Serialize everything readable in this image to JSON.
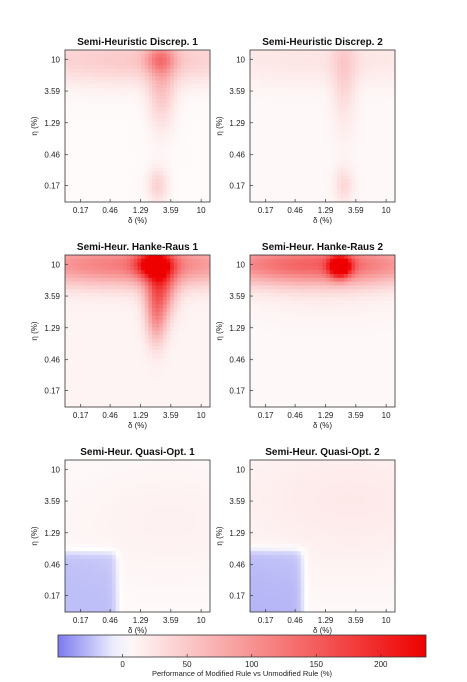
{
  "chart_data": {
    "type": "heatmap",
    "axis_ticks": [
      "0.17",
      "0.46",
      "1.29",
      "3.59",
      "10"
    ],
    "colormap": {
      "negative": "#7b7bf0",
      "zero": "#ffffff",
      "positive": "#ee0000"
    },
    "colorbar": {
      "label": "Performance of Modified Rule vs Unmodified Rule (%)",
      "range": [
        -50,
        235
      ],
      "ticks": [
        0,
        50,
        100,
        150,
        200
      ]
    },
    "panels": [
      {
        "title": "Semi-Heuristic Discrep. 1",
        "xlabel": "δ (%)",
        "ylabel": "η (%)",
        "base": 4,
        "blobs": [
          {
            "x": 1.29,
            "y": 10,
            "sx": 2.2,
            "sy": 0.35,
            "v": 45
          },
          {
            "x": 2.5,
            "y": 10,
            "sx": 0.22,
            "sy": 0.18,
            "v": 55
          },
          {
            "x": 2.6,
            "y": 4.5,
            "sx": 0.2,
            "sy": 0.6,
            "v": 50
          },
          {
            "x": 2.3,
            "y": 0.17,
            "sx": 0.15,
            "sy": 0.25,
            "v": 38
          }
        ]
      },
      {
        "title": "Semi-Heuristic Discrep. 2",
        "xlabel": "δ (%)",
        "ylabel": "η (%)",
        "base": 6,
        "blobs": [
          {
            "x": 1.29,
            "y": 10,
            "sx": 2.2,
            "sy": 0.35,
            "v": 18
          },
          {
            "x": 2.4,
            "y": 6,
            "sx": 0.18,
            "sy": 0.75,
            "v": 30
          },
          {
            "x": 2.4,
            "y": 0.17,
            "sx": 0.14,
            "sy": 0.25,
            "v": 30
          }
        ]
      },
      {
        "title": "Semi-Heur. Hanke-Raus 1",
        "xlabel": "δ (%)",
        "ylabel": "η (%)",
        "base": 10,
        "blobs": [
          {
            "x": 1.0,
            "y": 10,
            "sx": 2.0,
            "sy": 0.3,
            "v": 110
          },
          {
            "x": 2.0,
            "y": 10,
            "sx": 0.25,
            "sy": 0.18,
            "v": 150
          },
          {
            "x": 2.5,
            "y": 5,
            "sx": 0.22,
            "sy": 0.4,
            "v": 120
          },
          {
            "x": 2.2,
            "y": 1.8,
            "sx": 0.15,
            "sy": 0.4,
            "v": 75
          }
        ]
      },
      {
        "title": "Semi-Heur. Hanke-Raus 2",
        "xlabel": "δ (%)",
        "ylabel": "η (%)",
        "base": 6,
        "blobs": [
          {
            "x": 0.9,
            "y": 10,
            "sx": 1.8,
            "sy": 0.28,
            "v": 130
          },
          {
            "x": 2.1,
            "y": 9.3,
            "sx": 0.16,
            "sy": 0.15,
            "v": 210
          },
          {
            "x": 1.3,
            "y": 6,
            "sx": 1.2,
            "sy": 0.5,
            "v": 12
          }
        ]
      },
      {
        "title": "Semi-Heur. Quasi-Opt. 1",
        "xlabel": "δ (%)",
        "ylabel": "η (%)",
        "base": 5,
        "blobs": [
          {
            "x": 3.5,
            "y": 1.8,
            "sx": 1.5,
            "sy": 0.8,
            "v": 8
          }
        ],
        "negative_region": {
          "x_max": 0.58,
          "y_max": 0.7,
          "value": -25
        }
      },
      {
        "title": "Semi-Heur. Quasi-Opt. 2",
        "xlabel": "δ (%)",
        "ylabel": "η (%)",
        "base": 6,
        "blobs": [
          {
            "x": 3.0,
            "y": 3.8,
            "sx": 1.8,
            "sy": 0.9,
            "v": 14
          }
        ],
        "negative_region": {
          "x_max": 0.6,
          "y_max": 0.75,
          "value": -28
        }
      }
    ]
  }
}
